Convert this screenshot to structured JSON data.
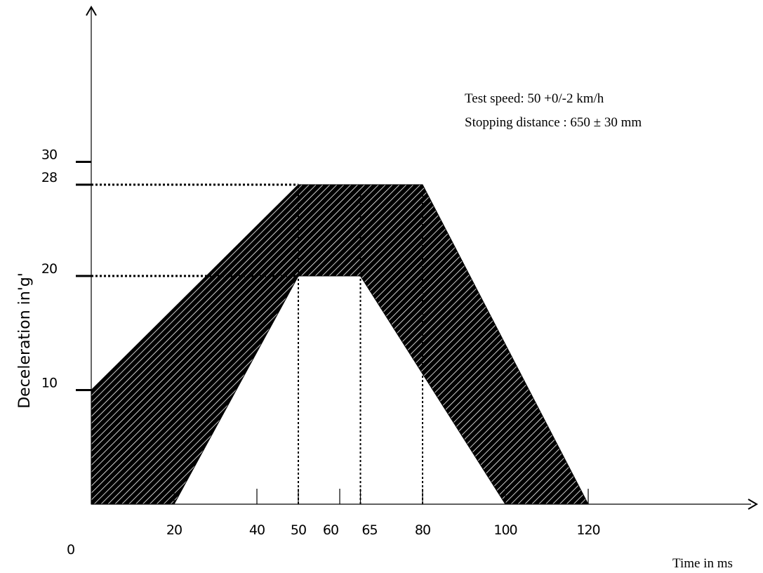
{
  "chart_data": {
    "type": "area",
    "title": "",
    "xlabel": "Time in ms",
    "ylabel": "Deceleration in'g'",
    "xlim": [
      0,
      150
    ],
    "ylim": [
      0,
      35
    ],
    "origin_label": "0",
    "x_ticks": [
      {
        "value": 20,
        "label": "20"
      },
      {
        "value": 40,
        "label": "40"
      },
      {
        "value": 50,
        "label": "50"
      },
      {
        "value": 60,
        "label": "60"
      },
      {
        "value": 65,
        "label": "65"
      },
      {
        "value": 80,
        "label": "80"
      },
      {
        "value": 100,
        "label": "100"
      },
      {
        "value": 120,
        "label": "120"
      }
    ],
    "y_ticks": [
      {
        "value": 10,
        "label": "10"
      },
      {
        "value": 20,
        "label": "20"
      },
      {
        "value": 28,
        "label": "28"
      },
      {
        "value": 30,
        "label": "30"
      }
    ],
    "upper_bound": [
      [
        0,
        0
      ],
      [
        0,
        10
      ],
      [
        50,
        28
      ],
      [
        80,
        28
      ],
      [
        120,
        0
      ]
    ],
    "lower_bound": [
      [
        20,
        0
      ],
      [
        50,
        20
      ],
      [
        65,
        20
      ],
      [
        100,
        0
      ]
    ],
    "reference_lines": {
      "horizontal": [
        20,
        28
      ],
      "vertical": [
        50,
        65,
        80
      ]
    },
    "annotations": [
      "Test speed: 50 +0/-2 km/h",
      "Stopping distance : 650 ± 30 mm"
    ],
    "fill": "hatched",
    "grid": false,
    "legend": "none"
  },
  "colors": {
    "fill": "#000000",
    "hatch_line": "#ffffff",
    "axis": "#000000"
  }
}
